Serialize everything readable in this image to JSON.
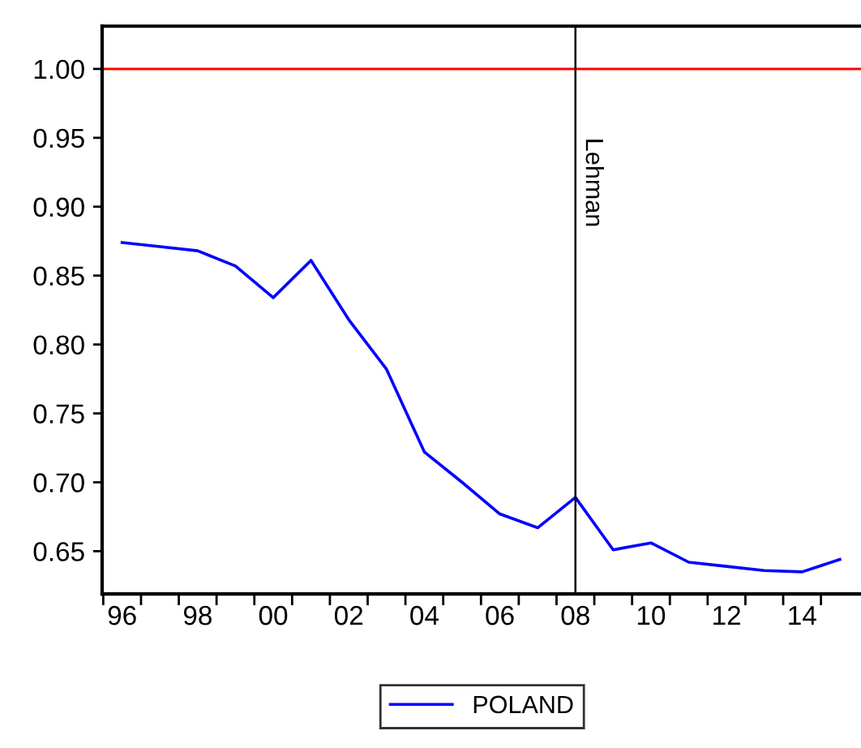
{
  "chart_data": {
    "type": "line",
    "categories": [
      "96",
      null,
      "98",
      null,
      "00",
      null,
      "02",
      null,
      "04",
      null,
      "06",
      null,
      "08",
      null,
      "10",
      null,
      "12",
      null,
      "14",
      null
    ],
    "series": [
      {
        "name": "POLAND",
        "color": "#0000ff",
        "values": [
          0.874,
          0.871,
          0.868,
          0.857,
          0.834,
          0.861,
          0.818,
          0.782,
          0.722,
          0.7,
          0.677,
          0.667,
          0.689,
          0.651,
          0.656,
          0.642,
          0.639,
          0.636,
          0.635,
          0.644
        ]
      }
    ],
    "ylim": [
      0.619,
      1.031
    ],
    "yticks": [
      0.65,
      {
        "value": 0.7,
        "label": "0.70"
      },
      0.75,
      {
        "value": 0.8,
        "label": "0.80"
      },
      0.85,
      {
        "value": 0.9,
        "label": "0.90"
      },
      0.95,
      {
        "value": 1.0,
        "label": "1.00"
      }
    ],
    "ref_lines": [
      {
        "axis": "y",
        "value": 1.0,
        "label": null,
        "color": "#ff0000"
      },
      {
        "axis": "x",
        "value": "08",
        "label": "Lehman",
        "color": "#000000"
      }
    ],
    "legend": "bottom",
    "grid": false,
    "marker": "none",
    "line_style": "solid"
  }
}
